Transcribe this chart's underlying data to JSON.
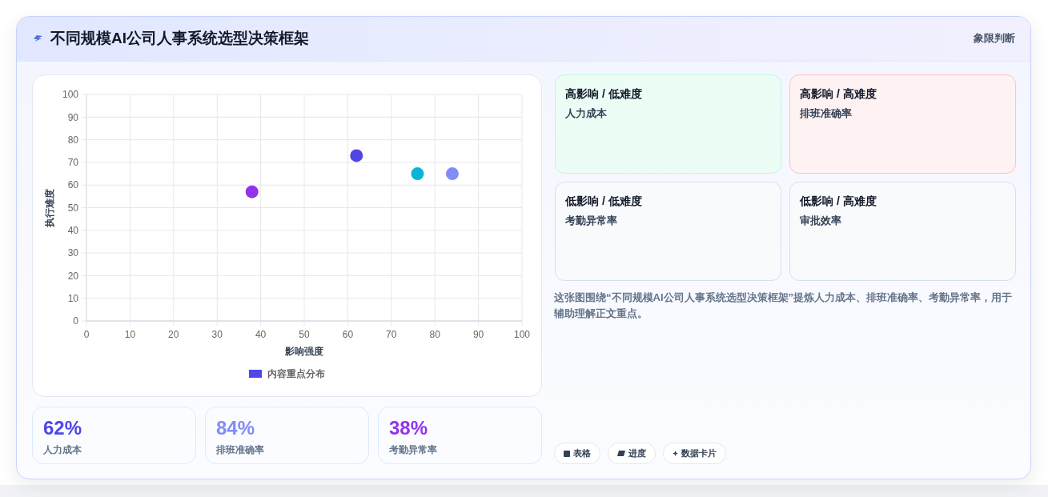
{
  "chart_data": [
    {
      "type": "scatter",
      "title": "不同规模AI公司人事系统选型决策框架",
      "xlabel": "影响强度",
      "ylabel": "执行难度",
      "x": [
        62,
        84,
        38,
        76
      ],
      "series": [
        {
          "name": "内容重点分布",
          "color": "#4f46e5",
          "colors": [
            "#4f46e5",
            "#818cf8",
            "#9333ea",
            "#06b6d4"
          ],
          "values": [
            73,
            65,
            57,
            65
          ]
        }
      ],
      "xlim": [
        0,
        100
      ],
      "xticks": [
        0,
        10,
        20,
        30,
        40,
        50,
        60,
        70,
        80,
        90,
        100
      ],
      "ylim": [
        0,
        100
      ],
      "yticks": [
        0,
        10,
        20,
        30,
        40,
        50,
        60,
        70,
        80,
        90,
        100
      ],
      "grid": true,
      "legend": "bottom",
      "marker": "circle"
    },
    {
      "type": "other",
      "title": "象限判断",
      "categories": [
        "高影响 / 低难度",
        "高影响 / 高难度",
        "低影响 / 低难度",
        "低影响 / 高难度"
      ],
      "colors": [
        "#ecfdf5",
        "#fef2f2",
        "#f8fafc",
        "#f8fafc"
      ],
      "annotations": [
        "人力成本",
        "排班准确率",
        "考勤异常率",
        "审批效率",
        "这张图围绕“不同规模AI公司人事系统选型决策框架”提炼人力成本、排班准确率、考勤异常率，用于辅助理解正文重点。"
      ]
    },
    {
      "type": "other",
      "categories": [
        "人力成本",
        "排班准确率",
        "考勤异常率"
      ],
      "annotations": [
        "62%",
        "84%",
        "38%"
      ]
    },
    {
      "type": "other",
      "categories": [
        "表格",
        "进度",
        "数据卡片"
      ]
    }
  ]
}
